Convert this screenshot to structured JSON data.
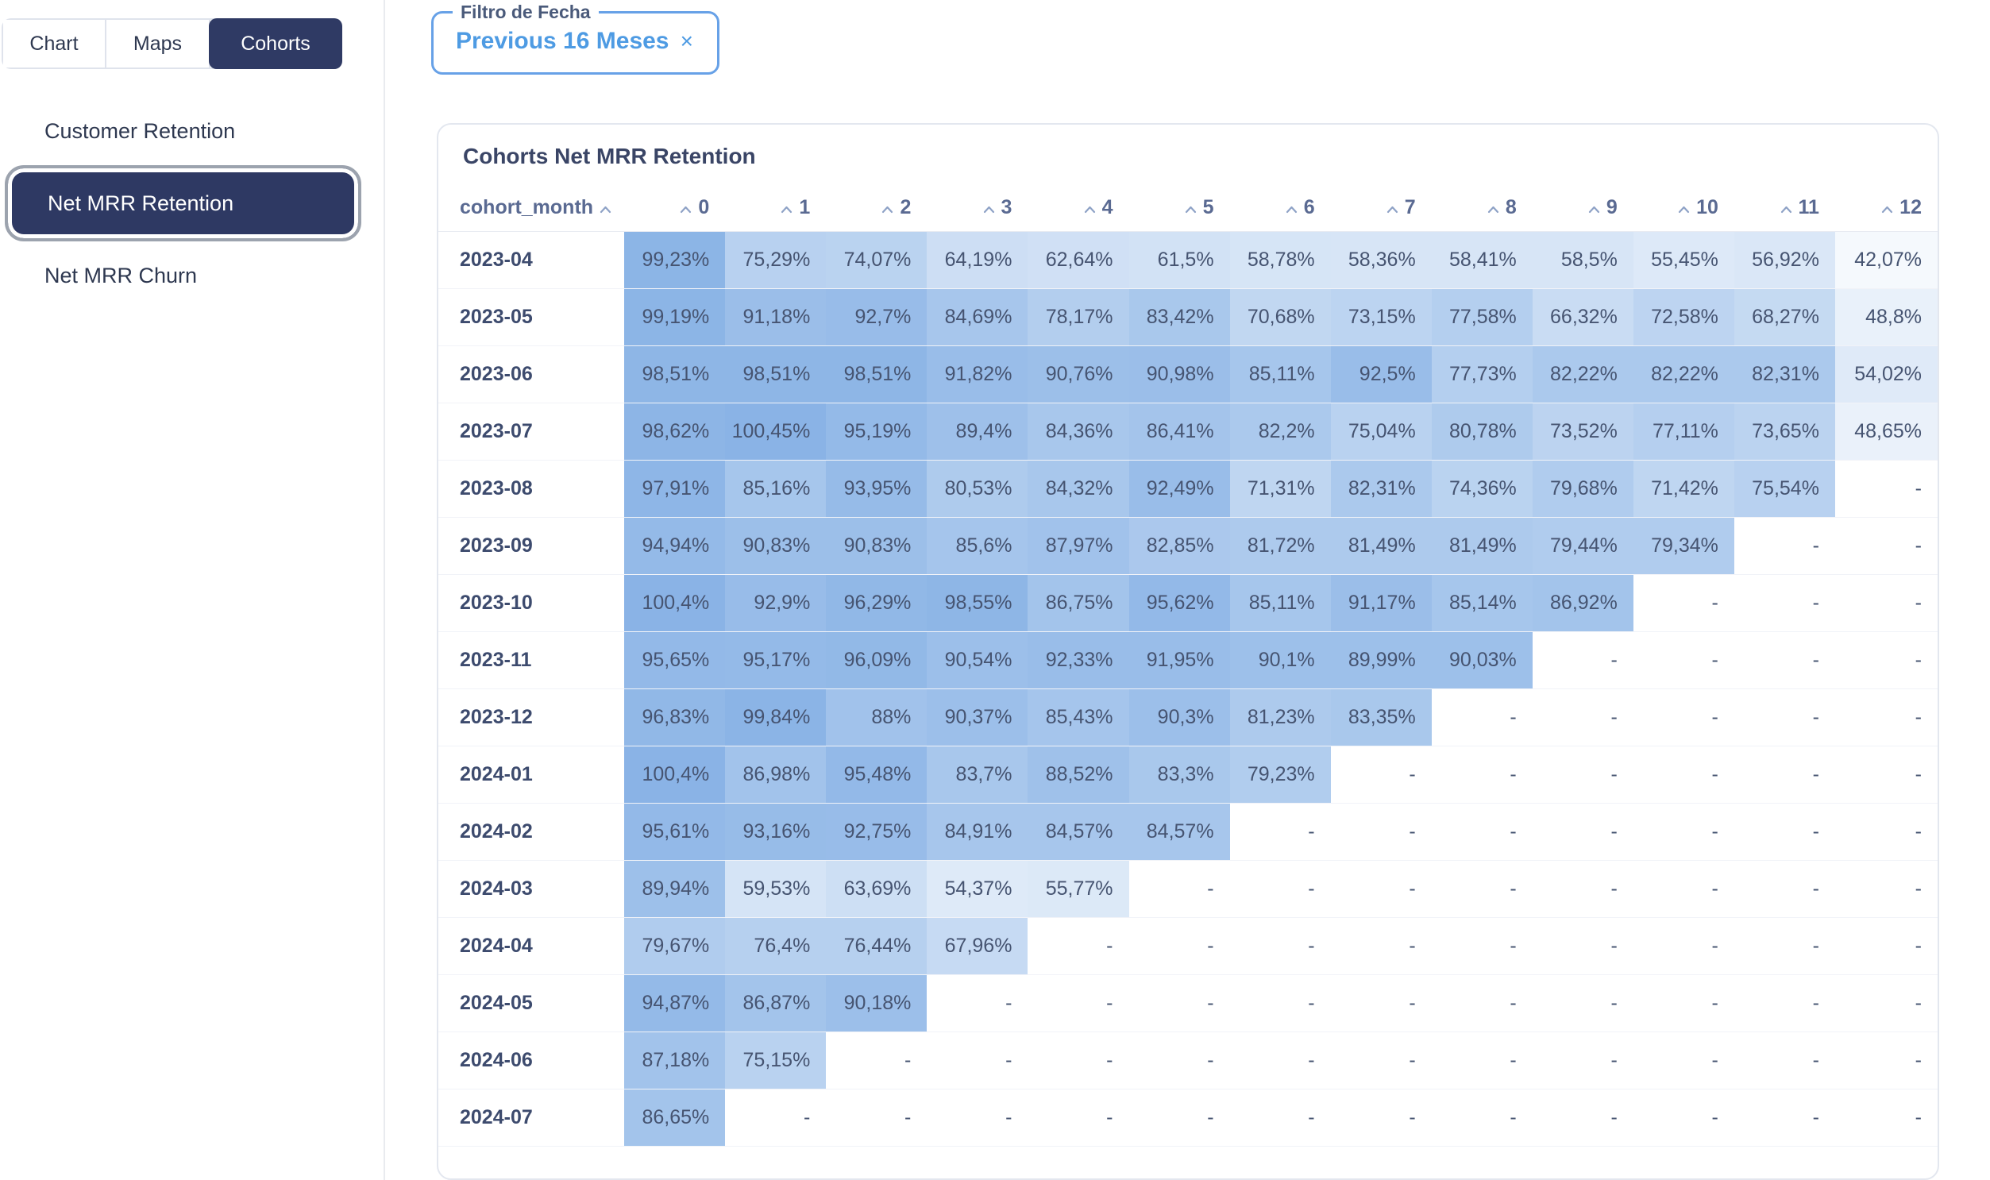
{
  "tabs": {
    "items": [
      {
        "label": "Chart",
        "active": false
      },
      {
        "label": "Maps",
        "active": false
      },
      {
        "label": "Cohorts",
        "active": true
      }
    ]
  },
  "sidebar": {
    "items": [
      {
        "label": "Customer Retention",
        "selected": false
      },
      {
        "label": "Net MRR Retention",
        "selected": true
      },
      {
        "label": "Net MRR Churn",
        "selected": false
      }
    ]
  },
  "filter": {
    "label": "Filtro de Fecha",
    "value": "Previous 16 Meses",
    "clear_icon": "×"
  },
  "colors": {
    "accent_navy": "#2F3A64",
    "accent_blue": "#4E9BE3",
    "heatmap_base": "#4285D6",
    "header_text": "#5A6A92",
    "cell_text": "#465471"
  },
  "chart_data": {
    "type": "heatmap",
    "title": "Cohorts Net MRR Retention",
    "row_header": "cohort_month",
    "columns": [
      "0",
      "1",
      "2",
      "3",
      "4",
      "5",
      "6",
      "7",
      "8",
      "9",
      "10",
      "11",
      "12"
    ],
    "empty_cell": "-",
    "rows": [
      {
        "cohort": "2023-04",
        "values": [
          "99,23%",
          "75,29%",
          "74,07%",
          "64,19%",
          "62,64%",
          "61,5%",
          "58,78%",
          "58,36%",
          "58,41%",
          "58,5%",
          "55,45%",
          "56,92%",
          "42,07%"
        ]
      },
      {
        "cohort": "2023-05",
        "values": [
          "99,19%",
          "91,18%",
          "92,7%",
          "84,69%",
          "78,17%",
          "83,42%",
          "70,68%",
          "73,15%",
          "77,58%",
          "66,32%",
          "72,58%",
          "68,27%",
          "48,8%"
        ]
      },
      {
        "cohort": "2023-06",
        "values": [
          "98,51%",
          "98,51%",
          "98,51%",
          "91,82%",
          "90,76%",
          "90,98%",
          "85,11%",
          "92,5%",
          "77,73%",
          "82,22%",
          "82,22%",
          "82,31%",
          "54,02%"
        ]
      },
      {
        "cohort": "2023-07",
        "values": [
          "98,62%",
          "100,45%",
          "95,19%",
          "89,4%",
          "84,36%",
          "86,41%",
          "82,2%",
          "75,04%",
          "80,78%",
          "73,52%",
          "77,11%",
          "73,65%",
          "48,65%"
        ]
      },
      {
        "cohort": "2023-08",
        "values": [
          "97,91%",
          "85,16%",
          "93,95%",
          "80,53%",
          "84,32%",
          "92,49%",
          "71,31%",
          "82,31%",
          "74,36%",
          "79,68%",
          "71,42%",
          "75,54%",
          "-"
        ]
      },
      {
        "cohort": "2023-09",
        "values": [
          "94,94%",
          "90,83%",
          "90,83%",
          "85,6%",
          "87,97%",
          "82,85%",
          "81,72%",
          "81,49%",
          "81,49%",
          "79,44%",
          "79,34%",
          "-",
          "-"
        ]
      },
      {
        "cohort": "2023-10",
        "values": [
          "100,4%",
          "92,9%",
          "96,29%",
          "98,55%",
          "86,75%",
          "95,62%",
          "85,11%",
          "91,17%",
          "85,14%",
          "86,92%",
          "-",
          "-",
          "-"
        ]
      },
      {
        "cohort": "2023-11",
        "values": [
          "95,65%",
          "95,17%",
          "96,09%",
          "90,54%",
          "92,33%",
          "91,95%",
          "90,1%",
          "89,99%",
          "90,03%",
          "-",
          "-",
          "-",
          "-"
        ]
      },
      {
        "cohort": "2023-12",
        "values": [
          "96,83%",
          "99,84%",
          "88%",
          "90,37%",
          "85,43%",
          "90,3%",
          "81,23%",
          "83,35%",
          "-",
          "-",
          "-",
          "-",
          "-"
        ]
      },
      {
        "cohort": "2024-01",
        "values": [
          "100,4%",
          "86,98%",
          "95,48%",
          "83,7%",
          "88,52%",
          "83,3%",
          "79,23%",
          "-",
          "-",
          "-",
          "-",
          "-",
          "-"
        ]
      },
      {
        "cohort": "2024-02",
        "values": [
          "95,61%",
          "93,16%",
          "92,75%",
          "84,91%",
          "84,57%",
          "84,57%",
          "-",
          "-",
          "-",
          "-",
          "-",
          "-",
          "-"
        ]
      },
      {
        "cohort": "2024-03",
        "values": [
          "89,94%",
          "59,53%",
          "63,69%",
          "54,37%",
          "55,77%",
          "-",
          "-",
          "-",
          "-",
          "-",
          "-",
          "-",
          "-"
        ]
      },
      {
        "cohort": "2024-04",
        "values": [
          "79,67%",
          "76,4%",
          "76,44%",
          "67,96%",
          "-",
          "-",
          "-",
          "-",
          "-",
          "-",
          "-",
          "-",
          "-"
        ]
      },
      {
        "cohort": "2024-05",
        "values": [
          "94,87%",
          "86,87%",
          "90,18%",
          "-",
          "-",
          "-",
          "-",
          "-",
          "-",
          "-",
          "-",
          "-",
          "-"
        ]
      },
      {
        "cohort": "2024-06",
        "values": [
          "87,18%",
          "75,15%",
          "-",
          "-",
          "-",
          "-",
          "-",
          "-",
          "-",
          "-",
          "-",
          "-",
          "-"
        ]
      },
      {
        "cohort": "2024-07",
        "values": [
          "86,65%",
          "-",
          "-",
          "-",
          "-",
          "-",
          "-",
          "-",
          "-",
          "-",
          "-",
          "-",
          "-"
        ]
      }
    ]
  }
}
